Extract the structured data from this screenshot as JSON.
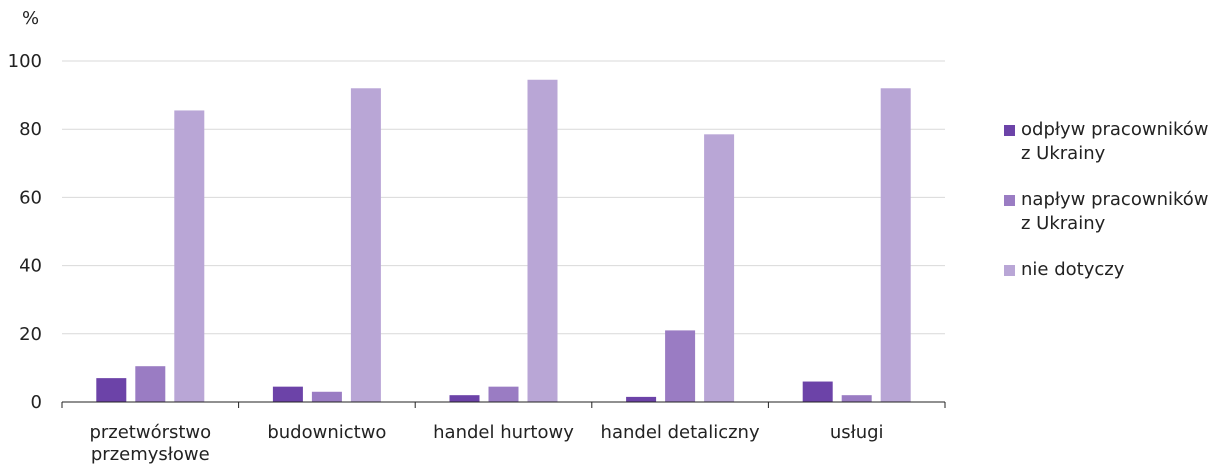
{
  "chart_data": {
    "type": "bar",
    "ylabel": "%",
    "xlabel": "",
    "ylim": [
      0,
      100
    ],
    "yticks": [
      0,
      20,
      40,
      60,
      80,
      100
    ],
    "grid": true,
    "legend_position": "right",
    "categories": [
      "przetwórstwo\nprzemysłowe",
      "budownictwo",
      "handel hurtowy",
      "handel detaliczny",
      "usługi"
    ],
    "series": [
      {
        "name": "odpływ pracowników\nz Ukrainy",
        "color": "#6c43a8",
        "values": [
          7,
          4.5,
          2,
          1.5,
          6
        ]
      },
      {
        "name": "napływ pracowników\nz Ukrainy",
        "color": "#9a7cc3",
        "values": [
          10.5,
          3,
          4.5,
          21,
          2
        ]
      },
      {
        "name": "nie dotyczy",
        "color": "#b9a6d6",
        "values": [
          85.5,
          92,
          94.5,
          78.5,
          92
        ]
      }
    ]
  }
}
